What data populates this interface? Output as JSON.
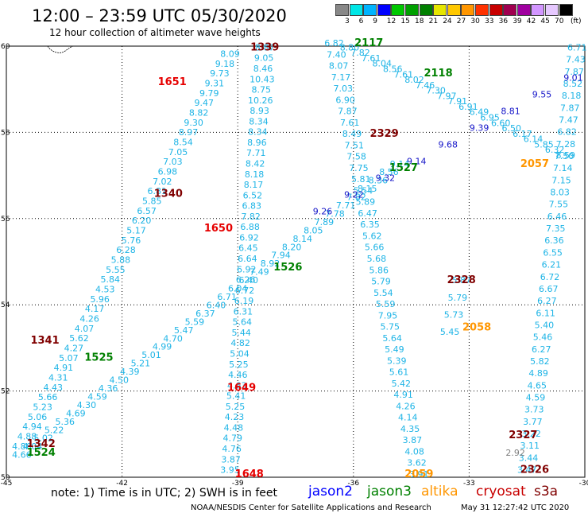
{
  "title": "12:00 – 23:59 UTC 05/30/2020",
  "subtitle": "12 hour collection of altimeter wave heights",
  "legend": {
    "colors": [
      "#888888",
      "#00e6e6",
      "#00b4ff",
      "#0000ff",
      "#00c800",
      "#00a000",
      "#008000",
      "#e6e600",
      "#ffc800",
      "#ff9600",
      "#ff3200",
      "#c80000",
      "#a00050",
      "#a000a0",
      "#d296ff",
      "#e6c8ff",
      "#000000"
    ],
    "labels": [
      "3",
      "6",
      "9",
      "12",
      "15",
      "18",
      "21",
      "24",
      "27",
      "30",
      "33",
      "36",
      "39",
      "42",
      "45",
      "70"
    ],
    "unit": "(ft)"
  },
  "note": "note: 1) Time is in UTC; 2) SWH is in feet",
  "satellites": [
    {
      "name": "jason2",
      "color": "#0000ff"
    },
    {
      "name": "jason3",
      "color": "#008000"
    },
    {
      "name": "altika",
      "color": "#ff9600"
    },
    {
      "name": "cryosat",
      "color": "#c80000"
    },
    {
      "name": "s3a",
      "color": "#800000"
    }
  ],
  "credit": "NOAA/NESDIS Center for Satellite Applications and Research",
  "timestamp": "May 31 12:27:42 UTC 2020",
  "chart_data": {
    "type": "scatter",
    "xlim": [
      -45,
      -30
    ],
    "ylim": [
      50,
      60
    ],
    "x_ticks": [
      "-45",
      "-42",
      "-39",
      "-36",
      "-33",
      "-30"
    ],
    "y_ticks": [
      "50",
      "52",
      "54",
      "56",
      "58",
      "60"
    ],
    "grid": true,
    "colors": {
      "cyan": "#1eb4e6",
      "blue": "#1414c8",
      "gray": "#808080"
    },
    "time_labels": [
      {
        "text": "1339",
        "lon": -38.3,
        "lat": 59.9,
        "color": "#800000"
      },
      {
        "text": "1651",
        "lon": -40.7,
        "lat": 59.1,
        "color": "#e60000"
      },
      {
        "text": "1340",
        "lon": -40.8,
        "lat": 56.5,
        "color": "#800000"
      },
      {
        "text": "1650",
        "lon": -39.5,
        "lat": 55.7,
        "color": "#e60000"
      },
      {
        "text": "1526",
        "lon": -37.7,
        "lat": 54.8,
        "color": "#008000"
      },
      {
        "text": "1341",
        "lon": -44.0,
        "lat": 53.1,
        "color": "#800000"
      },
      {
        "text": "1525",
        "lon": -42.6,
        "lat": 52.7,
        "color": "#008000"
      },
      {
        "text": "1649",
        "lon": -38.9,
        "lat": 52.0,
        "color": "#e60000"
      },
      {
        "text": "1342",
        "lon": -44.1,
        "lat": 50.7,
        "color": "#800000"
      },
      {
        "text": "1524",
        "lon": -44.1,
        "lat": 50.5,
        "color": "#008000"
      },
      {
        "text": "1648",
        "lon": -38.7,
        "lat": 50.0,
        "color": "#e60000"
      },
      {
        "text": "2117",
        "lon": -35.6,
        "lat": 60.0,
        "color": "#008000"
      },
      {
        "text": "2118",
        "lon": -33.8,
        "lat": 59.3,
        "color": "#008000"
      },
      {
        "text": "2329",
        "lon": -35.2,
        "lat": 57.9,
        "color": "#800000"
      },
      {
        "text": "1527",
        "lon": -34.7,
        "lat": 57.1,
        "color": "#008000"
      },
      {
        "text": "2057",
        "lon": -31.3,
        "lat": 57.2,
        "color": "#ff9600"
      },
      {
        "text": "2328",
        "lon": -33.2,
        "lat": 54.5,
        "color": "#800000"
      },
      {
        "text": "2058",
        "lon": -32.8,
        "lat": 53.4,
        "color": "#ff9600"
      },
      {
        "text": "2327",
        "lon": -31.6,
        "lat": 50.9,
        "color": "#800000"
      },
      {
        "text": "2059",
        "lon": -34.3,
        "lat": 50.0,
        "color": "#ff9600"
      },
      {
        "text": "2326",
        "lon": -31.3,
        "lat": 50.1,
        "color": "#800000"
      }
    ],
    "tracks": [
      {
        "name": "pass-1339-1342",
        "color": "cyan",
        "start": [
          -39.2,
          59.75
        ],
        "end": [
          -44.6,
          50.65
        ],
        "values": [
          "8.09",
          "9.18",
          "9.73",
          "9.31",
          "9.79",
          "9.47",
          "8.82",
          "9.30",
          "8.97",
          "8.54",
          "7.05",
          "7.03",
          "6.98",
          "7.02",
          "6.81",
          "5.85",
          "6.57",
          "6.20",
          "5.17",
          "5.76",
          "6.28",
          "5.88",
          "5.55",
          "5.84",
          "4.53",
          "5.96",
          "4.17",
          "4.26",
          "4.07",
          "5.62",
          "4.27",
          "5.07",
          "4.91",
          "4.31",
          "4.43",
          "5.66",
          "5.23",
          "5.06",
          "4.94",
          "4.88",
          "4.86"
        ]
      },
      {
        "name": "pass-1651-1648",
        "color": "cyan",
        "start": [
          -38.3,
          59.9
        ],
        "end": [
          -39.2,
          50.1
        ],
        "values": [
          "8.87",
          "9.05",
          "8.46",
          "10.43",
          "8.75",
          "10.26",
          "8.93",
          "8.34",
          "8.34",
          "8.96",
          "7.71",
          "8.42",
          "8.18",
          "8.17",
          "6.52",
          "6.83",
          "7.82",
          "6.88",
          "6.92",
          "6.45",
          "6.64",
          "6.92",
          "6.26",
          "6.72",
          "6.19",
          "6.31",
          "5.64",
          "5.44",
          "4.82",
          "5.04",
          "5.25",
          "4.46",
          "4.63",
          "5.41",
          "5.25",
          "4.23",
          "4.48",
          "4.79",
          "4.76",
          "3.87",
          "3.95"
        ]
      },
      {
        "name": "pass-1524-1527",
        "color": "cyan",
        "start": [
          -44.6,
          50.45
        ],
        "end": [
          -34.8,
          57.2
        ],
        "values": [
          "4.66",
          "4.04",
          "5.02",
          "5.22",
          "5.36",
          "4.69",
          "4.30",
          "4.59",
          "4.36",
          "4.50",
          "4.39",
          "5.21",
          "5.01",
          "4.99",
          "4.70",
          "5.47",
          "5.59",
          "6.37",
          "6.40",
          "6.71",
          "6.04",
          "6.40",
          "7.49",
          "8.92",
          "7.94",
          "8.20",
          "8.14",
          "8.05",
          "7.89",
          "7.78",
          "7.71",
          "7.82",
          "8.15",
          "8.36",
          "8.56",
          "9.14"
        ]
      },
      {
        "name": "pass-2117-2059",
        "color": "cyan",
        "start": [
          -36.5,
          60.0
        ],
        "end": [
          -34.3,
          50.0
        ],
        "values": [
          "6.82",
          "7.40",
          "8.07",
          "7.17",
          "7.03",
          "6.90",
          "7.87",
          "7.61",
          "8.49",
          "7.51",
          "7.58",
          "7.75",
          "5.81",
          "5.54",
          "5.89",
          "6.47",
          "6.35",
          "5.62",
          "5.66",
          "5.68",
          "5.86",
          "5.79",
          "5.54",
          "5.59",
          "7.95",
          "5.75",
          "5.64",
          "5.49",
          "5.39",
          "5.61",
          "5.42",
          "4.91",
          "4.26",
          "4.14",
          "4.35",
          "3.87",
          "4.08",
          "3.62",
          "3.91"
        ]
      },
      {
        "name": "pass-2118-2329",
        "color": "cyan",
        "start": [
          -36.1,
          59.9
        ],
        "end": [
          -30.5,
          57.4
        ],
        "values": [
          "8.80",
          "7.82",
          "7.61",
          "8.04",
          "8.56",
          "7.61",
          "8.02",
          "7.46",
          "7.30",
          "7.97",
          "7.91",
          "6.91",
          "6.49",
          "6.95",
          "6.60",
          "6.50",
          "6.17",
          "6.14",
          "5.85",
          "6.32",
          "8.59"
        ]
      },
      {
        "name": "pass-2057-2326",
        "color": "cyan",
        "start": [
          -30.2,
          59.9
        ],
        "end": [
          -31.5,
          50.1
        ],
        "values": [
          "6.71",
          "7.43",
          "7.87",
          "8.52",
          "8.18",
          "7.87",
          "7.47",
          "6.82",
          "7.28",
          "7.50",
          "7.14",
          "7.15",
          "8.03",
          "7.55",
          "6.46",
          "7.35",
          "6.36",
          "6.55",
          "6.21",
          "6.72",
          "6.67",
          "6.27",
          "6.11",
          "5.40",
          "5.46",
          "6.27",
          "5.82",
          "4.89",
          "4.65",
          "4.59",
          "3.73",
          "3.77",
          "3.22",
          "3.11",
          "3.44",
          "3.47"
        ]
      },
      {
        "name": "pass-2328-2058",
        "color": "cyan",
        "start": [
          -33.2,
          54.5
        ],
        "end": [
          -33.5,
          53.3
        ],
        "values": [
          "5.87",
          "5.79",
          "5.73",
          "5.45"
        ]
      },
      {
        "name": "pass-jason2-diag",
        "color": "blue",
        "start": [
          -36.8,
          56.1
        ],
        "end": [
          -30.3,
          59.2
        ],
        "values": [
          "9.26",
          "9.22",
          "9.32",
          "9.14",
          "9.68",
          "9.39",
          "8.81",
          "9.55",
          "9.01"
        ]
      },
      {
        "name": "pass-gray",
        "color": "gray",
        "start": [
          -31.8,
          50.5
        ],
        "end": [
          -31.8,
          50.5
        ],
        "values": [
          "2.92"
        ]
      }
    ]
  }
}
